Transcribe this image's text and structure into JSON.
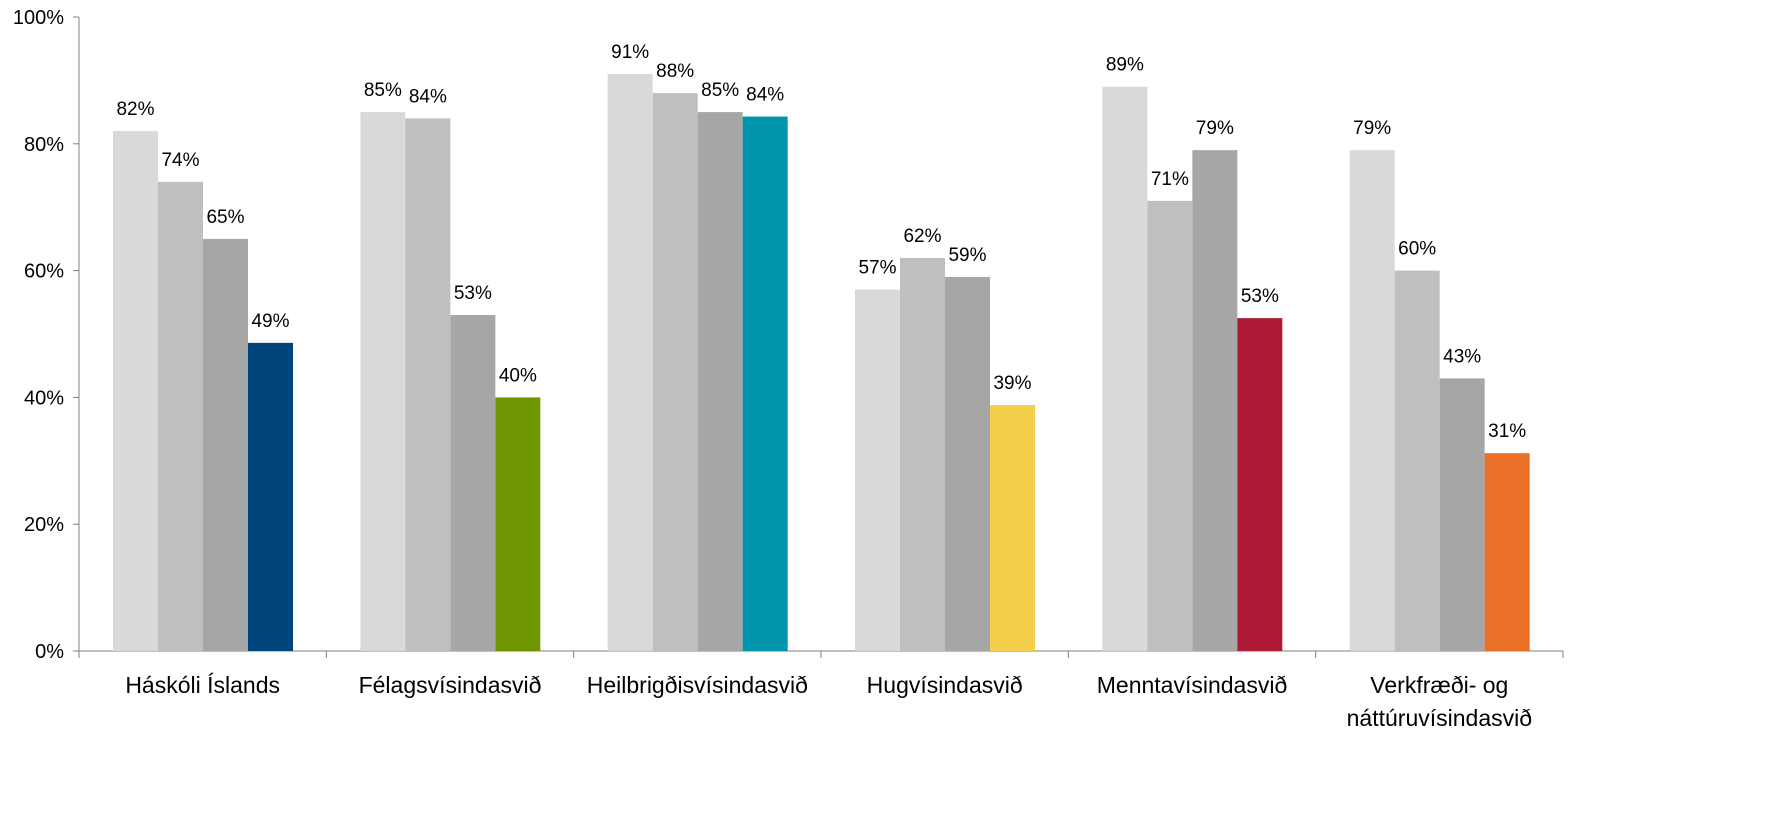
{
  "chart_data": {
    "type": "bar",
    "title": "",
    "xlabel": "",
    "ylabel": "",
    "ylim": [
      0,
      100
    ],
    "yticks": [
      0,
      20,
      40,
      60,
      80,
      100
    ],
    "ytick_labels": [
      "0%",
      "20%",
      "40%",
      "60%",
      "80%",
      "100%"
    ],
    "grid": false,
    "legend": "none",
    "categories": [
      "Háskóli Íslands",
      "Félagsvísindasvið",
      "Heilbrigðisvísindasvið",
      "Hugvísindasvið",
      "Menntavísindasvið",
      "Verkfræði- og náttúruvísindasvið"
    ],
    "category_label_lines": [
      [
        "Háskóli Íslands"
      ],
      [
        "Félagsvísindasvið"
      ],
      [
        "Heilbrigðisvísindasvið"
      ],
      [
        "Hugvísindasvið"
      ],
      [
        "Menntavísindasvið"
      ],
      [
        "Verkfræði- og",
        "náttúruvísindasvið"
      ]
    ],
    "series": [
      {
        "values": [
          82,
          85,
          91,
          57,
          89,
          79
        ],
        "labels": [
          "82%",
          "85%",
          "91%",
          "57%",
          "89%",
          "79%"
        ],
        "color": "#d9d9d9"
      },
      {
        "values": [
          74,
          84,
          88,
          62,
          71,
          60
        ],
        "labels": [
          "74%",
          "84%",
          "88%",
          "62%",
          "71%",
          "60%"
        ],
        "color": "#bfbfbf"
      },
      {
        "values": [
          65,
          53,
          85,
          59,
          79,
          43
        ],
        "labels": [
          "65%",
          "53%",
          "85%",
          "59%",
          "79%",
          "43%"
        ],
        "color": "#a6a6a6"
      },
      {
        "values": [
          48.6,
          40,
          84.3,
          38.8,
          52.5,
          31.2
        ],
        "labels": [
          "49%",
          "40%",
          "84%",
          "39%",
          "53%",
          "31%"
        ],
        "colors": [
          "#00447c",
          "#6f9600",
          "#0095ac",
          "#f4cf4b",
          "#ab1934",
          "#ea6f27"
        ]
      }
    ],
    "axis_color": "#808080"
  }
}
